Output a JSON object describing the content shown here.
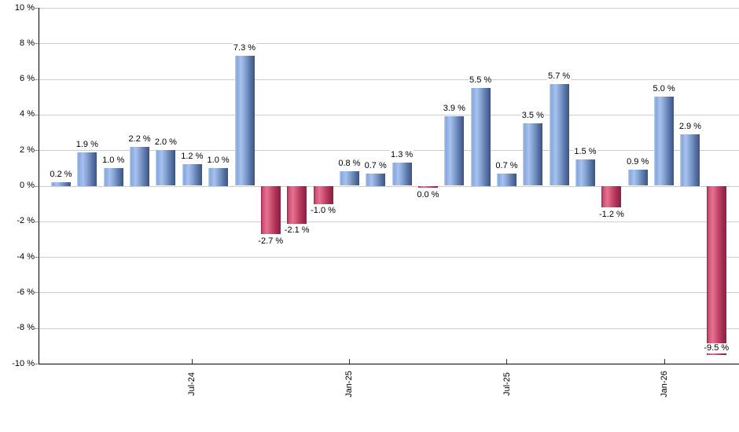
{
  "chart_data": {
    "type": "bar",
    "title": "",
    "xlabel": "",
    "ylabel": "",
    "unit": "%",
    "ylim": [
      -10,
      10
    ],
    "y_tick_step": 2,
    "grid": "horizontal",
    "legend": "none",
    "y_tick_labels": [
      "10 %",
      "8 %",
      "6 %",
      "4 %",
      "2 %",
      "0 %",
      "-2 %",
      "-4 %",
      "-6 %",
      "-8 %",
      "-10 %"
    ],
    "x_tick_labels": [
      {
        "label": "Jul-24",
        "bar_index": 5
      },
      {
        "label": "Jan-25",
        "bar_index": 11
      },
      {
        "label": "Jul-25",
        "bar_index": 17
      },
      {
        "label": "Jan-26",
        "bar_index": 23
      }
    ],
    "bars": [
      {
        "value": 0.2,
        "label": "0.2 %",
        "sign": "pos"
      },
      {
        "value": 1.9,
        "label": "1.9 %",
        "sign": "pos"
      },
      {
        "value": 1.0,
        "label": "1.0 %",
        "sign": "pos"
      },
      {
        "value": 2.2,
        "label": "2.2 %",
        "sign": "pos"
      },
      {
        "value": 2.0,
        "label": "2.0 %",
        "sign": "pos"
      },
      {
        "value": 1.2,
        "label": "1.2 %",
        "sign": "pos"
      },
      {
        "value": 1.0,
        "label": "1.0 %",
        "sign": "pos"
      },
      {
        "value": 7.3,
        "label": "7.3 %",
        "sign": "pos"
      },
      {
        "value": -2.7,
        "label": "-2.7 %",
        "sign": "neg"
      },
      {
        "value": -2.1,
        "label": "-2.1 %",
        "sign": "neg"
      },
      {
        "value": -1.0,
        "label": "-1.0 %",
        "sign": "neg"
      },
      {
        "value": 0.8,
        "label": "0.8 %",
        "sign": "pos"
      },
      {
        "value": 0.7,
        "label": "0.7 %",
        "sign": "pos"
      },
      {
        "value": 1.3,
        "label": "1.3 %",
        "sign": "pos"
      },
      {
        "value": 0.0,
        "label": "0.0 %",
        "sign": "neg"
      },
      {
        "value": 3.9,
        "label": "3.9 %",
        "sign": "pos"
      },
      {
        "value": 5.5,
        "label": "5.5 %",
        "sign": "pos"
      },
      {
        "value": 0.7,
        "label": "0.7 %",
        "sign": "pos"
      },
      {
        "value": 3.5,
        "label": "3.5 %",
        "sign": "pos"
      },
      {
        "value": 5.7,
        "label": "5.7 %",
        "sign": "pos"
      },
      {
        "value": 1.5,
        "label": "1.5 %",
        "sign": "pos"
      },
      {
        "value": -1.2,
        "label": "-1.2 %",
        "sign": "neg"
      },
      {
        "value": 0.9,
        "label": "0.9 %",
        "sign": "pos"
      },
      {
        "value": 5.0,
        "label": "5.0 %",
        "sign": "pos"
      },
      {
        "value": 2.9,
        "label": "2.9 %",
        "sign": "pos"
      },
      {
        "value": -9.5,
        "label": "-9.5 %",
        "sign": "neg"
      }
    ],
    "colors": {
      "positive_bar": "#85a8de",
      "negative_bar": "#c64568",
      "gridline": "#cccccc",
      "axis": "#000000",
      "label_text": "#000000",
      "background": "#ffffff"
    }
  }
}
